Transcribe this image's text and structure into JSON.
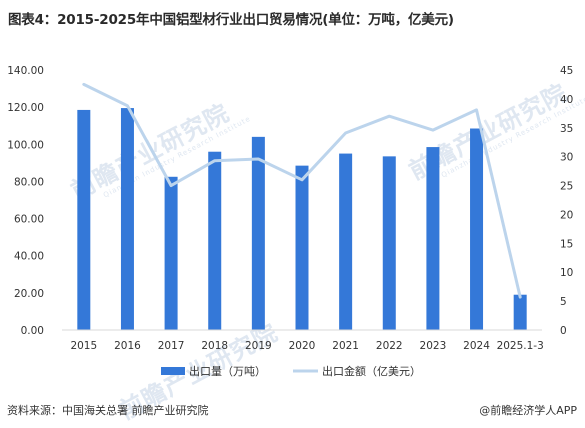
{
  "title": "图表4：2015-2025年中国铝型材行业出口贸易情况(单位：万吨，亿美元)",
  "watermark": "前瞻产业研究院",
  "watermark_sub": "Qianzhan Industry Research Institute",
  "source": "资料来源：中国海关总署 前瞻产业研究院",
  "credit": "@前瞻经济学人APP",
  "colors": {
    "bar": "#3478d8",
    "line": "#bcd4ec",
    "axis_text": "#333333"
  },
  "chart_data": {
    "type": "bar",
    "categories": [
      "2015",
      "2016",
      "2017",
      "2018",
      "2019",
      "2020",
      "2021",
      "2022",
      "2023",
      "2024",
      "2025.1-3"
    ],
    "y_left_ticks": [
      "0.00",
      "20.00",
      "40.00",
      "60.00",
      "80.00",
      "100.00",
      "120.00",
      "140.00"
    ],
    "y_right_ticks": [
      "0",
      "5",
      "10",
      "15",
      "20",
      "25",
      "30",
      "35",
      "40",
      "45"
    ],
    "ylim_left": [
      0,
      140
    ],
    "ylim_right": [
      0,
      45
    ],
    "series": [
      {
        "name": "出口量（万吨）",
        "type": "bar",
        "axis": "left",
        "values": [
          118.5,
          119.5,
          82.5,
          96,
          104,
          88.5,
          95,
          93.5,
          98.5,
          108.5,
          19
        ]
      },
      {
        "name": "出口金额（亿美元）",
        "type": "line",
        "axis": "right",
        "values": [
          42.5,
          38.8,
          25.0,
          29.3,
          29.6,
          26.0,
          34.1,
          37.0,
          34.6,
          38.1,
          5.7
        ]
      }
    ],
    "legend_position": "bottom"
  }
}
